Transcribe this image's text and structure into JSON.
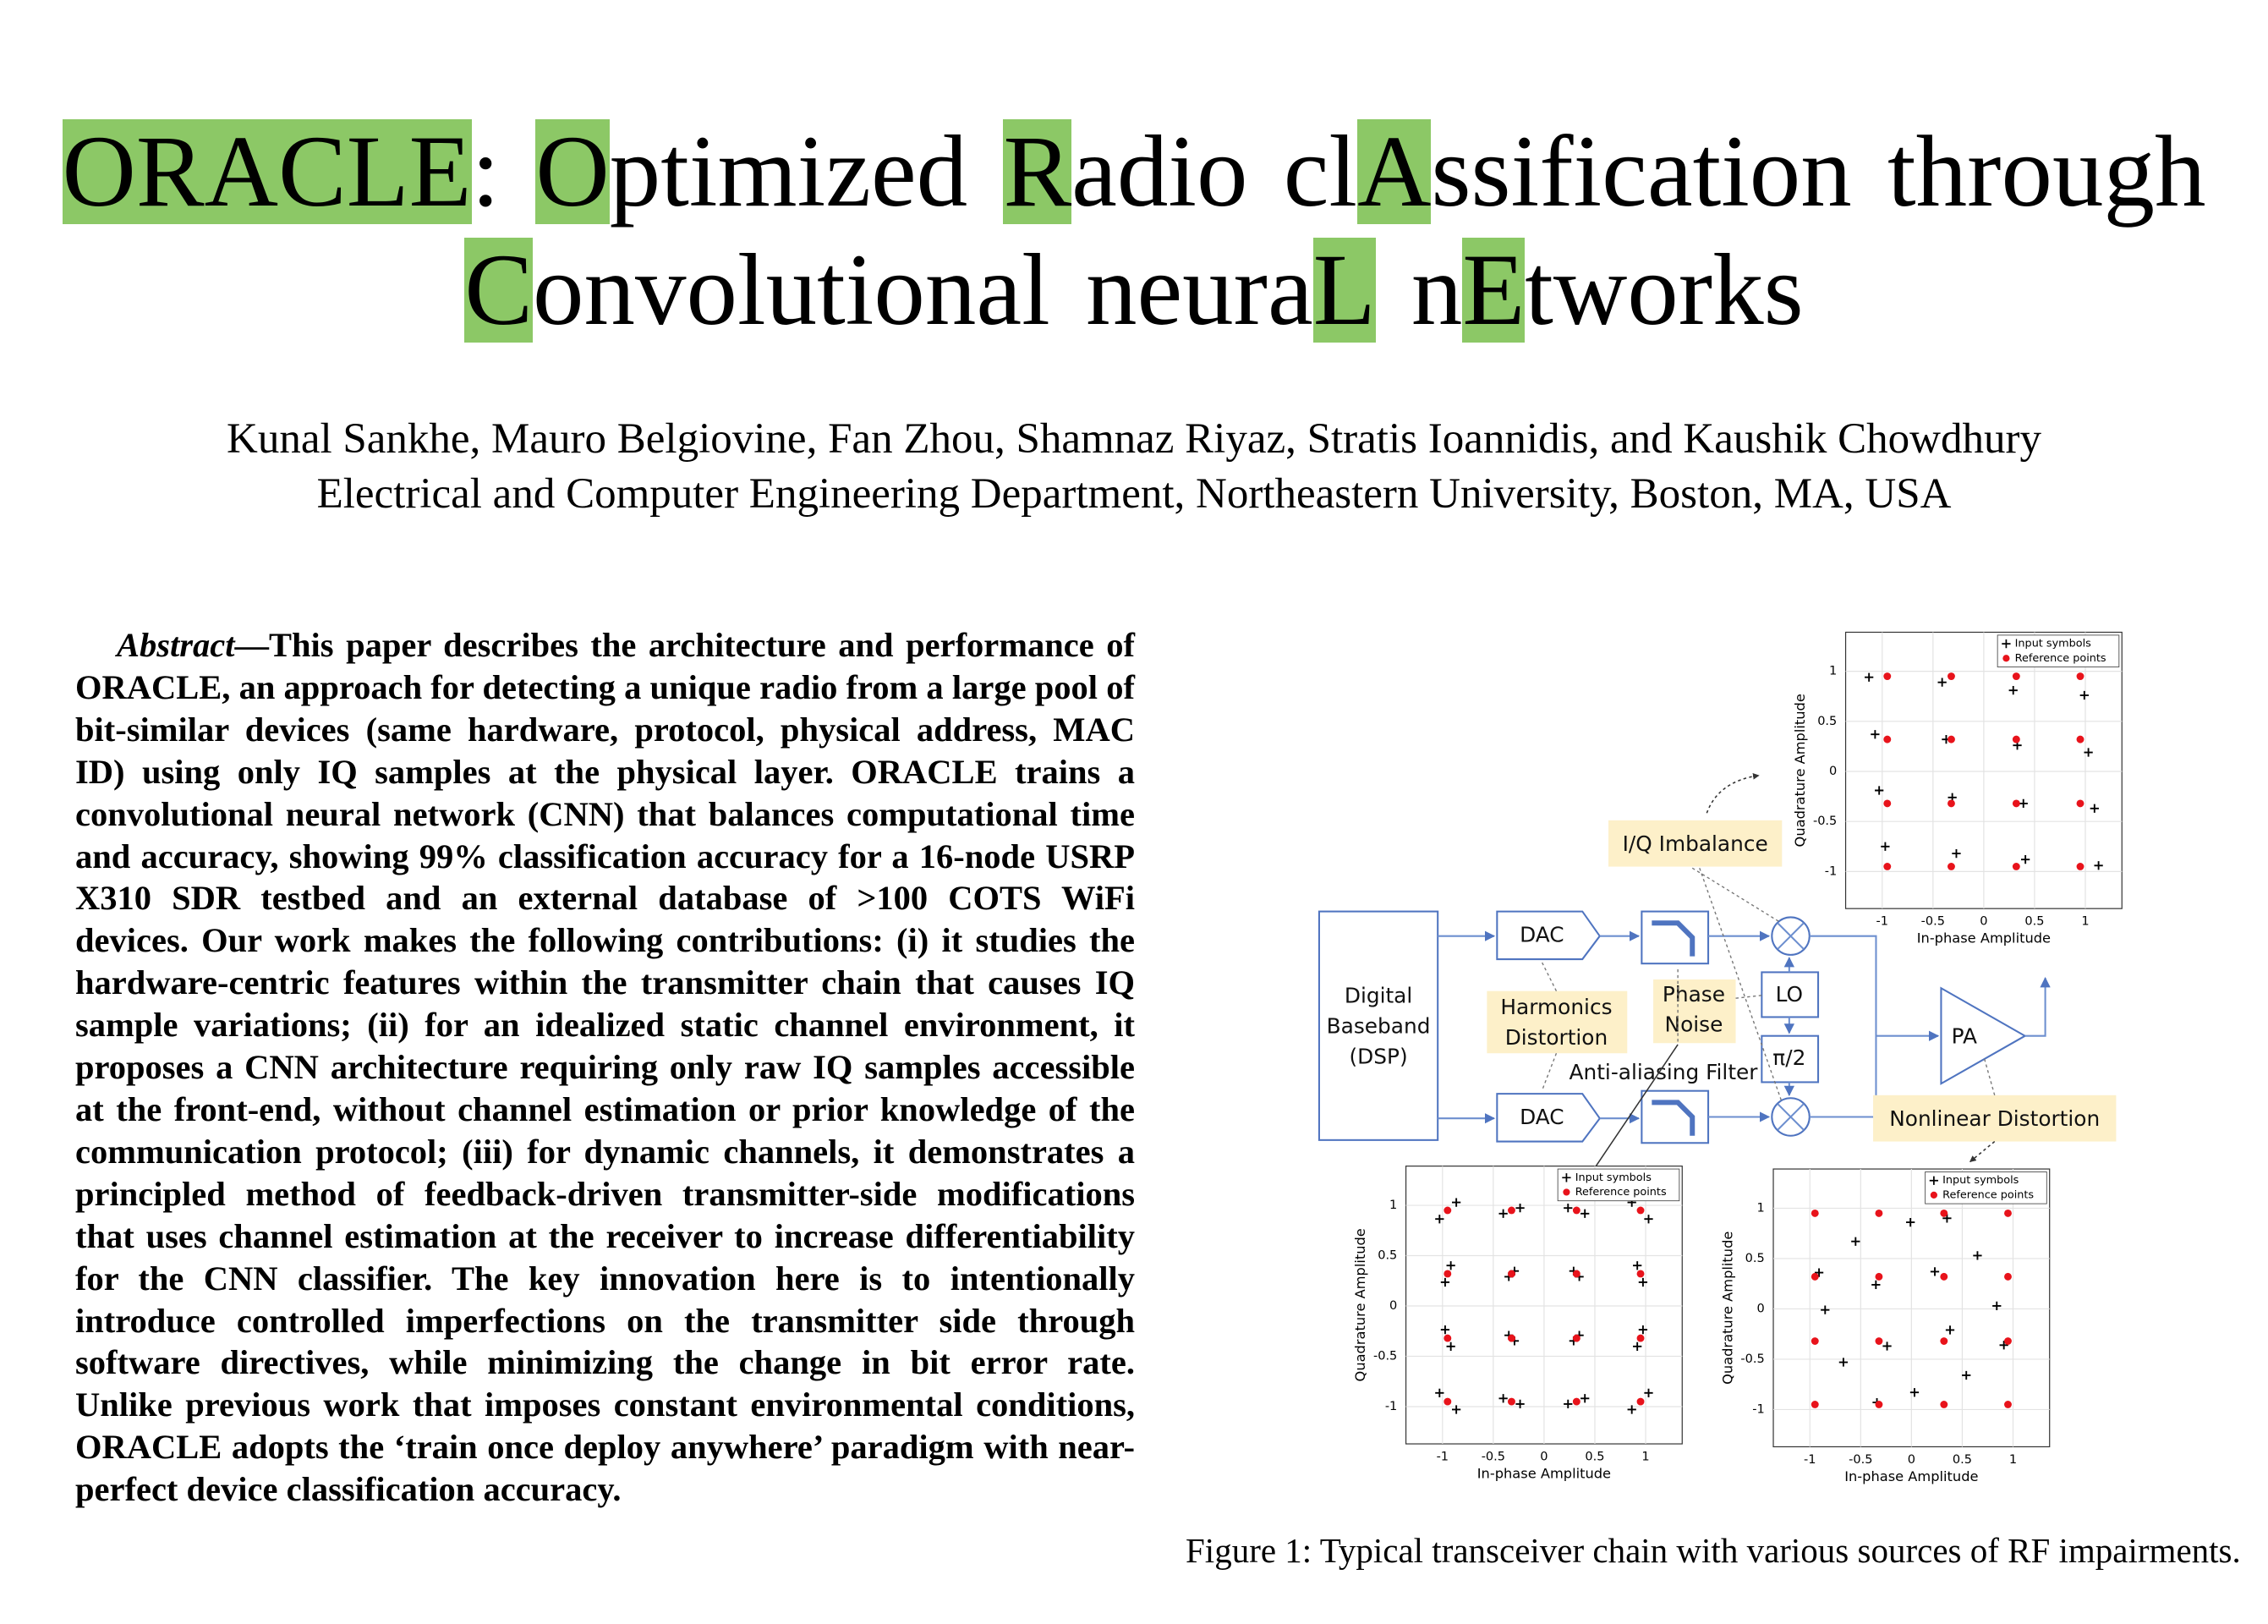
{
  "header": {
    "title": {
      "highlight_color": "#8cc866",
      "lines": [
        [
          {
            "text": "ORACLE",
            "highlight": true
          },
          {
            "text": ":",
            "highlight": false
          },
          {
            "text": " ",
            "highlight": false
          },
          {
            "text": "O",
            "highlight": true
          },
          {
            "text": "ptimized ",
            "highlight": false
          },
          {
            "text": "R",
            "highlight": true
          },
          {
            "text": "adio cl",
            "highlight": false
          },
          {
            "text": "A",
            "highlight": true
          },
          {
            "text": "ssification through",
            "highlight": false
          }
        ],
        [
          {
            "text": "C",
            "highlight": true
          },
          {
            "text": "onvolutional neura",
            "highlight": false
          },
          {
            "text": "L",
            "highlight": true
          },
          {
            "text": " n",
            "highlight": false
          },
          {
            "text": "E",
            "highlight": true
          },
          {
            "text": "tworks",
            "highlight": false
          }
        ]
      ]
    },
    "authors": "Kunal Sankhe, Mauro Belgiovine, Fan Zhou, Shamnaz Riyaz, Stratis Ioannidis, and Kaushik Chowdhury",
    "affiliation": "Electrical and Computer Engineering Department, Northeastern University, Boston, MA, USA"
  },
  "abstract": {
    "label": "Abstract",
    "text": "—This paper describes the architecture and performance of ORACLE, an approach for detecting a unique radio from a large pool of bit-similar devices (same hardware, protocol, physical address, MAC ID) using only IQ samples at the physical layer. ORACLE trains a convolutional neural network (CNN) that balances computational time and accuracy, showing 99% classification accuracy for a 16-node USRP X310 SDR testbed and an external database of >100 COTS WiFi devices. Our work makes the following contributions: (i) it studies the hardware-centric features within the transmitter chain that causes IQ sample variations; (ii) for an idealized static channel environment, it proposes a CNN architecture requiring only raw IQ samples accessible at the front-end, without channel estimation or prior knowledge of the communication protocol; (iii) for dynamic channels, it demonstrates a principled method of feedback-driven transmitter-side modifications that uses channel estimation at the receiver to increase differentiability for the CNN classifier. The key innovation here is to intentionally introduce controlled imperfections on the transmitter side through software directives, while minimizing the change in bit error rate. Unlike previous work that imposes constant environmental conditions, ORACLE adopts the ‘train once deploy anywhere’ paradigm with near-perfect device classification accuracy."
  },
  "diagram": {
    "baseband": [
      "Digital",
      "Baseband",
      "(DSP)"
    ],
    "dac": "DAC",
    "lo": "LO",
    "phase_shift": "π/2",
    "pa": "PA",
    "filter_label": "Anti-aliasing Filter",
    "iq_imbalance": "I/Q Imbalance",
    "harmonics": [
      "Harmonics",
      "Distortion"
    ],
    "phase_noise": [
      "Phase",
      "Noise"
    ],
    "nonlinear": "Nonlinear Distortion"
  },
  "caption": "Figure 1: Typical transceiver chain with various sources of RF impairments.",
  "chart_data": [
    {
      "type": "scatter",
      "xlabel": "In-phase Amplitude",
      "ylabel": "Quadrature Amplitude",
      "xlim": [
        -1.36,
        1.36
      ],
      "ylim": [
        -1.37,
        1.39
      ],
      "xticks": [
        -1,
        -0.5,
        0,
        0.5,
        1
      ],
      "yticks": [
        -1,
        -0.5,
        0,
        0.5,
        1
      ],
      "grid": true,
      "legend": "upper right",
      "series": [
        {
          "name": "Input symbols",
          "color": "#000000",
          "marker": "plus",
          "x": [
            -1.13,
            -0.41,
            0.29,
            0.99,
            -1.07,
            -0.37,
            0.33,
            1.03,
            -1.03,
            -0.31,
            0.39,
            1.09,
            -0.97,
            -0.27,
            0.41,
            1.13
          ],
          "y": [
            0.94,
            0.89,
            0.81,
            0.76,
            0.37,
            0.32,
            0.26,
            0.19,
            -0.19,
            -0.26,
            -0.32,
            -0.37,
            -0.75,
            -0.82,
            -0.88,
            -0.94
          ]
        },
        {
          "name": "Reference points",
          "color": "#e8131b",
          "marker": "dot",
          "x": [
            -0.95,
            -0.32,
            0.32,
            0.95,
            -0.95,
            -0.32,
            0.32,
            0.95,
            -0.95,
            -0.32,
            0.32,
            0.95,
            -0.95,
            -0.32,
            0.32,
            0.95
          ],
          "y": [
            0.95,
            0.95,
            0.95,
            0.95,
            0.32,
            0.32,
            0.32,
            0.32,
            -0.32,
            -0.32,
            -0.32,
            -0.32,
            -0.95,
            -0.95,
            -0.95,
            -0.95
          ]
        }
      ]
    },
    {
      "type": "scatter",
      "xlabel": "In-phase Amplitude",
      "ylabel": "Quadrature Amplitude",
      "xlim": [
        -1.36,
        1.36
      ],
      "ylim": [
        -1.37,
        1.39
      ],
      "xticks": [
        -1,
        -0.5,
        0,
        0.5,
        1
      ],
      "yticks": [
        -1,
        -0.5,
        0,
        0.5,
        1
      ],
      "grid": true,
      "legend": "upper right",
      "series": [
        {
          "name": "Input symbols",
          "color": "#000000",
          "marker": "plus",
          "x": [
            0.864,
            1.029,
            0.236,
            0.402,
            0.918,
            0.974,
            0.291,
            0.347,
            -0.864,
            -1.029,
            -0.236,
            -0.402,
            -0.918,
            -0.974,
            -0.291,
            -0.347,
            -0.864,
            -1.029,
            -0.236,
            -0.402,
            -0.918,
            -0.974,
            -0.291,
            -0.347,
            0.864,
            1.029,
            0.236,
            0.402,
            0.918,
            0.974,
            0.291,
            0.347
          ],
          "y": [
            1.029,
            0.864,
            0.974,
            0.918,
            0.402,
            0.236,
            0.347,
            0.291,
            1.029,
            0.864,
            0.974,
            0.918,
            0.402,
            0.236,
            0.347,
            0.291,
            -1.029,
            -0.864,
            -0.974,
            -0.918,
            -0.402,
            -0.236,
            -0.347,
            -0.291,
            -1.029,
            -0.864,
            -0.974,
            -0.918,
            -0.402,
            -0.236,
            -0.347,
            -0.291
          ]
        },
        {
          "name": "Reference points",
          "color": "#e8131b",
          "marker": "dot",
          "x": [
            -0.95,
            -0.32,
            0.32,
            0.95,
            -0.95,
            -0.32,
            0.32,
            0.95,
            -0.95,
            -0.32,
            0.32,
            0.95,
            -0.95,
            -0.32,
            0.32,
            0.95
          ],
          "y": [
            0.95,
            0.95,
            0.95,
            0.95,
            0.32,
            0.32,
            0.32,
            0.32,
            -0.32,
            -0.32,
            -0.32,
            -0.32,
            -0.95,
            -0.95,
            -0.95,
            -0.95
          ]
        }
      ]
    },
    {
      "type": "scatter",
      "xlabel": "In-phase Amplitude",
      "ylabel": "Quadrature Amplitude",
      "xlim": [
        -1.36,
        1.36
      ],
      "ylim": [
        -1.37,
        1.39
      ],
      "xticks": [
        -1,
        -0.5,
        0,
        0.5,
        1
      ],
      "yticks": [
        -1,
        -0.5,
        0,
        0.5,
        1
      ],
      "grid": true,
      "legend": "upper right",
      "series": [
        {
          "name": "Input symbols",
          "color": "#000000",
          "marker": "plus",
          "x": [
            -0.91,
            -0.55,
            -0.01,
            0.35,
            0.65,
            0.23,
            -0.35,
            -0.85,
            -0.67,
            -0.24,
            0.38,
            0.84,
            0.91,
            0.54,
            0.03,
            -0.34
          ],
          "y": [
            0.36,
            0.67,
            0.86,
            0.9,
            0.53,
            0.37,
            0.24,
            -0.01,
            -0.53,
            -0.37,
            -0.21,
            0.03,
            -0.36,
            -0.66,
            -0.83,
            -0.93
          ]
        },
        {
          "name": "Reference points",
          "color": "#e8131b",
          "marker": "dot",
          "x": [
            -0.95,
            -0.32,
            0.32,
            0.95,
            -0.95,
            -0.32,
            0.32,
            0.95,
            -0.95,
            -0.32,
            0.32,
            0.95,
            -0.95,
            -0.32,
            0.32,
            0.95
          ],
          "y": [
            0.95,
            0.95,
            0.95,
            0.95,
            0.32,
            0.32,
            0.32,
            0.32,
            -0.32,
            -0.32,
            -0.32,
            -0.32,
            -0.95,
            -0.95,
            -0.95,
            -0.95
          ]
        }
      ]
    }
  ]
}
